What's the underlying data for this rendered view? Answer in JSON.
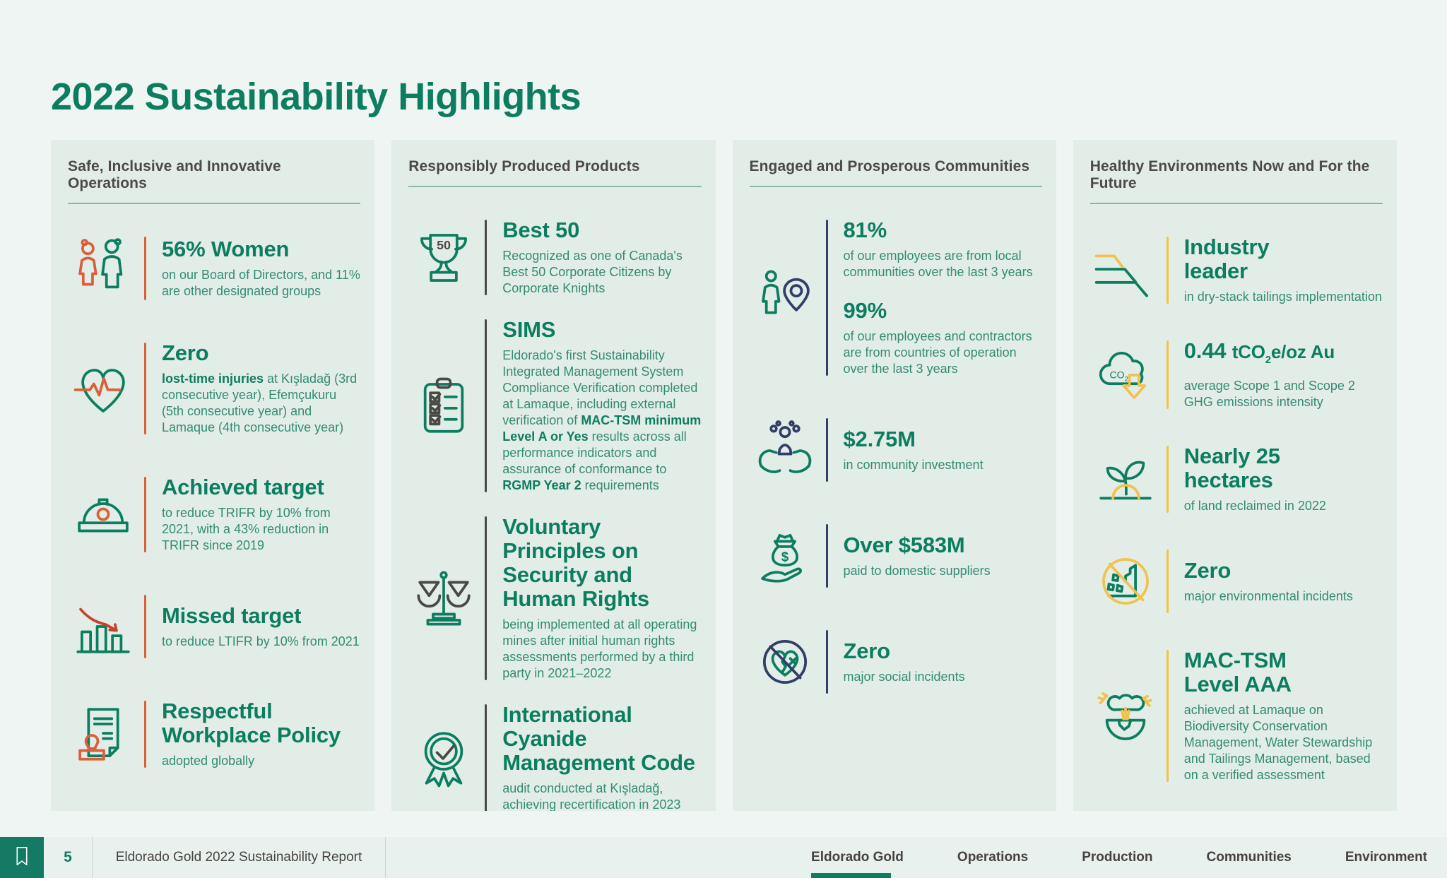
{
  "title": "2022 Sustainability Highlights",
  "colors": {
    "brand_green": "#0C7D60",
    "body_green": "#338B72",
    "orange": "#D9603B",
    "navy": "#303E68",
    "yellow": "#F1C24D",
    "charcoal": "#4A4A45",
    "header_text": "#4B4A44",
    "page_bg": "#EFF5F2",
    "card_bg": "#E3EDE8",
    "footer_bg": "#E9F1EE"
  },
  "icon_texts": {
    "trophy_number": "50",
    "co2_label": "CO",
    "co2_sub": "2",
    "dollar_sign": "$"
  },
  "columns": [
    {
      "header": "Safe, Inclusive and Innovative Operations",
      "accent": "orange",
      "items": [
        {
          "icon": "two-people-icon",
          "stats": [
            {
              "headline": [
                "56% Women"
              ],
              "body": [
                {
                  "t": "on our Board of Directors, and 11% are other designated groups"
                }
              ]
            }
          ]
        },
        {
          "icon": "heart-pulse-icon",
          "stats": [
            {
              "headline": [
                "Zero"
              ],
              "body": [
                {
                  "t": "lost-time injuries",
                  "bold": true
                },
                {
                  "t": " at Kışladağ (3rd consecutive year), Efemçukuru (5th consecutive year) and Lamaque (4th consecutive year)"
                }
              ]
            }
          ]
        },
        {
          "icon": "hard-hat-icon",
          "stats": [
            {
              "headline": [
                "Achieved target"
              ],
              "body": [
                {
                  "t": "to reduce TRIFR by 10% from 2021, with a 43% reduction in TRIFR since 2019"
                }
              ]
            }
          ]
        },
        {
          "icon": "declining-bar-chart-icon",
          "stats": [
            {
              "headline": [
                "Missed target"
              ],
              "body": [
                {
                  "t": "to reduce LTIFR by 10% from 2021"
                }
              ]
            }
          ]
        },
        {
          "icon": "document-stamp-icon",
          "stats": [
            {
              "headline": [
                "Respectful",
                "Workplace Policy"
              ],
              "body": [
                {
                  "t": "adopted globally"
                }
              ]
            }
          ]
        }
      ]
    },
    {
      "header": "Responsibly Produced Products",
      "accent": "charcoal",
      "items": [
        {
          "icon": "trophy-50-icon",
          "stats": [
            {
              "headline": [
                "Best 50"
              ],
              "body": [
                {
                  "t": "Recognized as one of Canada's Best 50 Corporate Citizens by Corporate Knights"
                }
              ]
            }
          ]
        },
        {
          "icon": "clipboard-checklist-icon",
          "stats": [
            {
              "headline": [
                "SIMS"
              ],
              "body": [
                {
                  "t": "Eldorado's first Sustainability Integrated Management System Compliance Verification completed at Lamaque, including external verification of "
                },
                {
                  "t": "MAC-TSM minimum Level A or Yes",
                  "bold": true
                },
                {
                  "t": " results across all performance indicators and assurance of conformance to "
                },
                {
                  "t": "RGMP Year 2",
                  "bold": true
                },
                {
                  "t": " requirements"
                }
              ]
            }
          ]
        },
        {
          "icon": "scales-icon",
          "stats": [
            {
              "headline": [
                "Voluntary",
                "Principles on",
                "Security and",
                "Human Rights"
              ],
              "body": [
                {
                  "t": "being implemented at all operating mines after initial human rights assessments performed by a third party in 2021–2022"
                }
              ]
            }
          ]
        },
        {
          "icon": "award-ribbon-icon",
          "stats": [
            {
              "headline": [
                "International",
                "Cyanide",
                "Management Code"
              ],
              "body": [
                {
                  "t": "audit conducted at Kışladağ, achieving recertification in 2023"
                }
              ]
            }
          ]
        }
      ]
    },
    {
      "header": "Engaged and Prosperous Communities",
      "accent": "navy",
      "items": [
        {
          "icon": "person-location-pin-icon",
          "stats": [
            {
              "headline": [
                "81%"
              ],
              "body": [
                {
                  "t": "of our employees are from local communities over the last 3 years"
                }
              ]
            },
            {
              "headline": [
                "99%"
              ],
              "body": [
                {
                  "t": "of our employees and contractors are from countries of operation over the last 3 years"
                }
              ]
            }
          ]
        },
        {
          "icon": "hands-community-icon",
          "stats": [
            {
              "headline": [
                "$2.75M"
              ],
              "body": [
                {
                  "t": "in community investment"
                }
              ]
            }
          ]
        },
        {
          "icon": "money-bag-hand-icon",
          "stats": [
            {
              "headline": [
                "Over $583M"
              ],
              "body": [
                {
                  "t": "paid to domestic suppliers"
                }
              ]
            }
          ]
        },
        {
          "icon": "no-broken-heart-icon",
          "stats": [
            {
              "headline": [
                "Zero"
              ],
              "body": [
                {
                  "t": "major social incidents"
                }
              ]
            }
          ]
        }
      ]
    },
    {
      "header": "Healthy Environments Now and For the Future",
      "accent": "yellow",
      "items": [
        {
          "icon": "dry-stack-slope-icon",
          "stats": [
            {
              "headline": [
                "Industry",
                "leader"
              ],
              "body": [
                {
                  "t": "in dry-stack tailings implementation"
                }
              ]
            }
          ]
        },
        {
          "icon": "co2-cloud-icon",
          "stats": [
            {
              "headline_segments": [
                {
                  "t": "0.44 "
                },
                {
                  "t": "tCO",
                  "small": true
                },
                {
                  "t": "2",
                  "sub": true
                },
                {
                  "t": "e/oz Au",
                  "small": true
                }
              ],
              "body": [
                {
                  "t": "average Scope 1 and Scope 2 GHG emissions intensity"
                }
              ]
            }
          ]
        },
        {
          "icon": "seedling-icon",
          "stats": [
            {
              "headline": [
                "Nearly 25",
                "hectares"
              ],
              "body": [
                {
                  "t": "of land reclaimed in 2022"
                }
              ]
            }
          ]
        },
        {
          "icon": "no-rockslide-icon",
          "stats": [
            {
              "headline": [
                "Zero"
              ],
              "body": [
                {
                  "t": "major environmental incidents"
                }
              ]
            }
          ]
        },
        {
          "icon": "tree-globe-icon",
          "stats": [
            {
              "headline": [
                "MAC-TSM",
                "Level AAA"
              ],
              "body": [
                {
                  "t": "achieved at Lamaque on Biodiversity Conservation Management, Water Stewardship and Tailings Management, based on a verified assessment"
                }
              ]
            }
          ]
        }
      ]
    }
  ],
  "footer": {
    "page_number": "5",
    "report_title": "Eldorado Gold 2022 Sustainability Report",
    "nav": [
      {
        "label": "Eldorado Gold",
        "active": true
      },
      {
        "label": "Operations",
        "active": false
      },
      {
        "label": "Production",
        "active": false
      },
      {
        "label": "Communities",
        "active": false
      },
      {
        "label": "Environment",
        "active": false
      }
    ]
  }
}
